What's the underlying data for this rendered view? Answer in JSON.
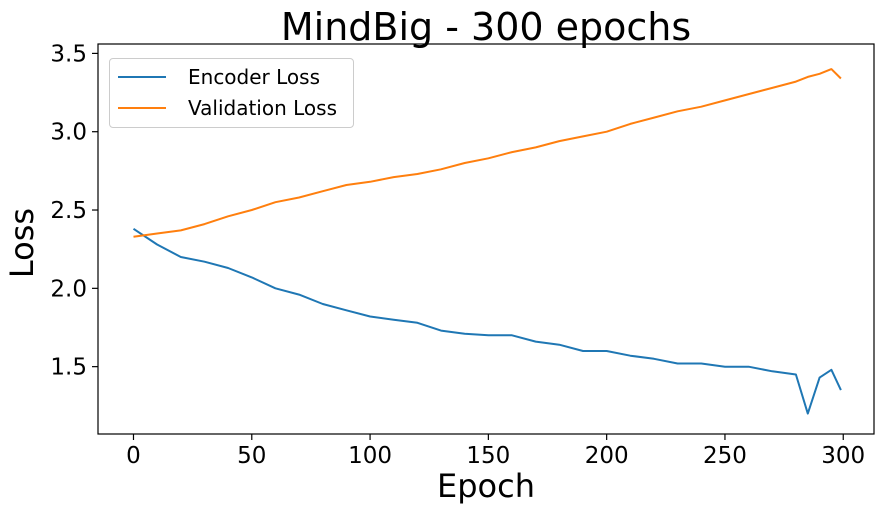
{
  "chart_data": {
    "type": "line",
    "title": "MindBig - 300 epochs",
    "xlabel": "Epoch",
    "ylabel": "Loss",
    "xlim": [
      -15,
      313
    ],
    "ylim": [
      1.07,
      3.56
    ],
    "xticks": [
      0,
      50,
      100,
      150,
      200,
      250,
      300
    ],
    "yticks": [
      1.5,
      2.0,
      2.5,
      3.0,
      3.5
    ],
    "xtick_labels": [
      "0",
      "50",
      "100",
      "150",
      "200",
      "250",
      "300"
    ],
    "ytick_labels": [
      "1.5",
      "2.0",
      "2.5",
      "3.0",
      "3.5"
    ],
    "grid": false,
    "legend_position": "top-left",
    "x": [
      0,
      10,
      20,
      30,
      40,
      50,
      60,
      70,
      80,
      90,
      100,
      110,
      120,
      130,
      140,
      150,
      160,
      170,
      180,
      190,
      200,
      210,
      220,
      230,
      240,
      250,
      260,
      270,
      280,
      285,
      290,
      295,
      299
    ],
    "series": [
      {
        "name": "Encoder Loss",
        "color": "#1f77b4",
        "values": [
          2.38,
          2.28,
          2.2,
          2.17,
          2.13,
          2.07,
          2.0,
          1.96,
          1.9,
          1.86,
          1.82,
          1.8,
          1.78,
          1.73,
          1.71,
          1.7,
          1.7,
          1.66,
          1.64,
          1.6,
          1.6,
          1.57,
          1.55,
          1.52,
          1.52,
          1.5,
          1.5,
          1.47,
          1.45,
          1.2,
          1.43,
          1.48,
          1.35
        ]
      },
      {
        "name": "Validation Loss",
        "color": "#ff7f0e",
        "values": [
          2.33,
          2.35,
          2.37,
          2.41,
          2.46,
          2.5,
          2.55,
          2.58,
          2.62,
          2.66,
          2.68,
          2.71,
          2.73,
          2.76,
          2.8,
          2.83,
          2.87,
          2.9,
          2.94,
          2.97,
          3.0,
          3.05,
          3.09,
          3.13,
          3.16,
          3.2,
          3.24,
          3.28,
          3.32,
          3.35,
          3.37,
          3.4,
          3.34
        ]
      }
    ]
  }
}
